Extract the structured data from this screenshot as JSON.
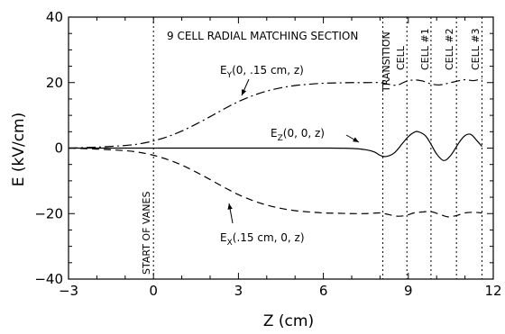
{
  "chart_data": {
    "type": "line",
    "xlabel": "Z  (cm)",
    "ylabel": "E  (kV/cm)",
    "xlim": [
      -3,
      12
    ],
    "ylim": [
      -40,
      40
    ],
    "xticks": [
      -3,
      0,
      3,
      6,
      9,
      12
    ],
    "yticks": [
      -40,
      -20,
      0,
      20,
      40
    ],
    "xtick_labels": [
      "−3",
      "0",
      "3",
      "6",
      "9",
      "12"
    ],
    "ytick_labels": [
      "−40",
      "−20",
      "0",
      "20",
      "40"
    ],
    "grid": false,
    "vertical_markers": [
      0,
      8.1,
      8.95,
      9.8,
      10.7,
      11.6
    ],
    "section_labels": {
      "radial_matching": "9 CELL RADIAL MATCHING SECTION",
      "start_of_vanes": "START OF VANES",
      "transition": "TRANSITION",
      "cell": "CELL",
      "cell1": "CELL #1",
      "cell2": "CELL #2",
      "cell3": "CELL #3"
    },
    "series": [
      {
        "name": "E_Y(0, .15 cm, z)",
        "label_main": "E",
        "label_sub": "Y",
        "label_rest": "(0, .15 cm, z)",
        "style": "dash-dot",
        "x": [
          -3,
          -2,
          -1,
          -0.5,
          0,
          0.5,
          1,
          1.5,
          2,
          2.5,
          3,
          3.5,
          4,
          4.5,
          5,
          5.5,
          6,
          6.5,
          7,
          7.5,
          8,
          8.3,
          8.6,
          8.9,
          9.2,
          9.5,
          9.8,
          10.1,
          10.4,
          10.7,
          11.0,
          11.3,
          11.6
        ],
        "y": [
          0,
          0.3,
          0.8,
          1.3,
          2.2,
          3.5,
          5.2,
          7.3,
          9.6,
          12,
          14.2,
          16,
          17.4,
          18.4,
          19.1,
          19.5,
          19.8,
          19.9,
          20,
          20,
          20,
          19.5,
          19.2,
          20.3,
          20.8,
          20.5,
          19.6,
          19.3,
          19.8,
          20.4,
          20.9,
          20.6,
          21.2
        ]
      },
      {
        "name": "E_Z(0, 0, z)",
        "label_main": "E",
        "label_sub": "Z",
        "label_rest": "(0, 0, z)",
        "style": "solid",
        "x": [
          -3,
          -2,
          -1,
          0,
          1,
          2,
          3,
          4,
          5,
          6,
          7,
          7.5,
          7.8,
          8.0,
          8.2,
          8.5,
          8.8,
          9.0,
          9.2,
          9.35,
          9.6,
          9.8,
          10.0,
          10.25,
          10.5,
          10.8,
          11.0,
          11.2,
          11.4,
          11.6
        ],
        "y": [
          0,
          0,
          0,
          0,
          0,
          0,
          0,
          0,
          0,
          0,
          -0.1,
          -0.5,
          -1.2,
          -2.2,
          -2.6,
          -1.5,
          1.5,
          3.5,
          4.8,
          5.0,
          3.8,
          1.2,
          -1.8,
          -3.8,
          -2.2,
          1.8,
          3.8,
          4.2,
          2.5,
          0.5
        ]
      },
      {
        "name": "E_X(.15 cm, 0, z)",
        "label_main": "E",
        "label_sub": "X",
        "label_rest": "(.15 cm, 0, z)",
        "style": "dashed",
        "x": [
          -3,
          -2,
          -1,
          -0.5,
          0,
          0.5,
          1,
          1.5,
          2,
          2.5,
          3,
          3.5,
          4,
          4.5,
          5,
          5.5,
          6,
          6.5,
          7,
          7.5,
          8,
          8.3,
          8.6,
          8.9,
          9.2,
          9.5,
          9.8,
          10.1,
          10.4,
          10.7,
          11.0,
          11.3,
          11.6
        ],
        "y": [
          0,
          -0.3,
          -0.8,
          -1.3,
          -2.2,
          -3.5,
          -5.2,
          -7.3,
          -9.6,
          -12,
          -14.2,
          -16,
          -17.4,
          -18.4,
          -19.1,
          -19.5,
          -19.8,
          -19.9,
          -20,
          -20,
          -19.8,
          -20.3,
          -20.8,
          -20.6,
          -19.8,
          -19.5,
          -19.4,
          -20.2,
          -21,
          -20.6,
          -19.8,
          -19.6,
          -19.8
        ]
      }
    ]
  }
}
